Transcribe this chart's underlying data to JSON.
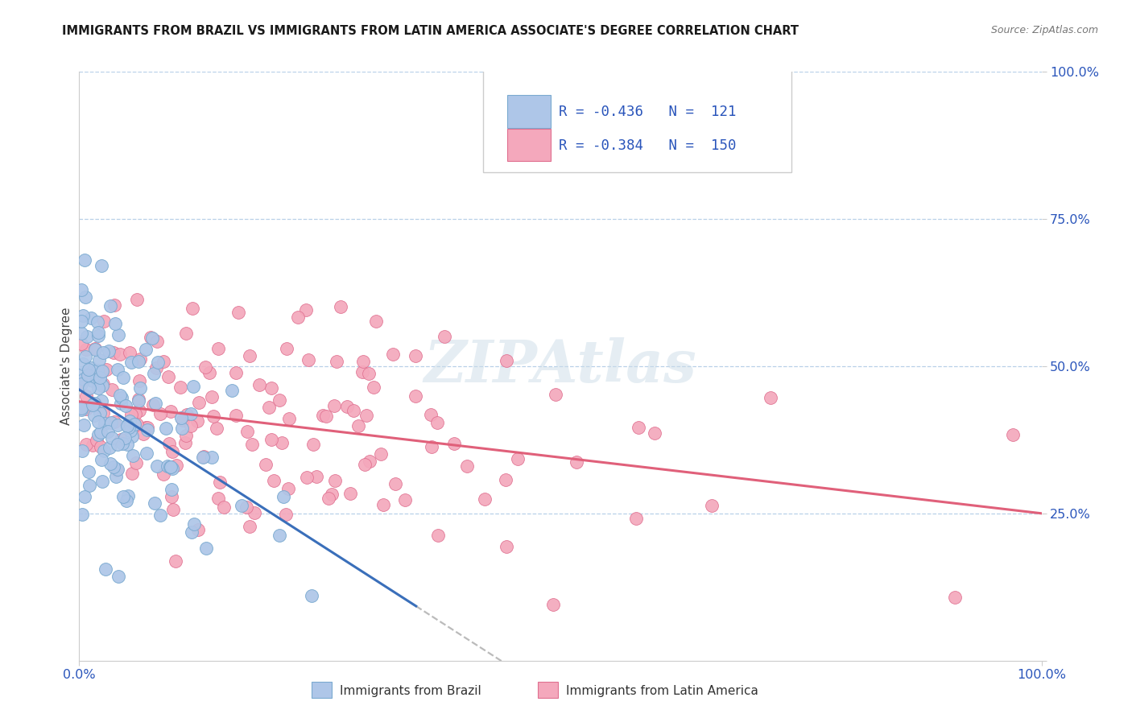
{
  "title": "IMMIGRANTS FROM BRAZIL VS IMMIGRANTS FROM LATIN AMERICA ASSOCIATE'S DEGREE CORRELATION CHART",
  "source_text": "Source: ZipAtlas.com",
  "ylabel": "Associate's Degree",
  "color_brazil": "#aec6e8",
  "color_latam": "#f4a8bc",
  "color_brazil_line": "#3a6fba",
  "color_latam_line": "#e0607a",
  "color_brazil_edge": "#7aaad0",
  "color_latam_edge": "#e07090",
  "color_text_blue": "#2a55bb",
  "color_grid": "#b8d0e8",
  "color_axis": "#cccccc",
  "watermark_color": "#ccdde8",
  "legend_text": "R = -0.436   N =  121",
  "legend_text2": "R = -0.384   N =  150",
  "bottom_label1": "Immigrants from Brazil",
  "bottom_label2": "Immigrants from Latin America",
  "brazil_seed": 10,
  "latam_seed": 20
}
